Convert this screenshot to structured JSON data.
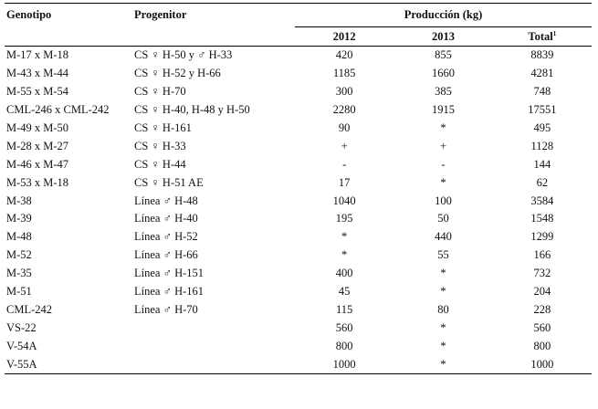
{
  "headers": {
    "genotipo": "Genotipo",
    "progenitor": "Progenitor",
    "produccion": "Producción (kg)",
    "year1": "2012",
    "year2": "2013",
    "total": "Total",
    "total_sup": "1"
  },
  "rows": [
    {
      "genotipo": "M-17 x M-18",
      "progenitor": "CS ♀ H-50 y ♂ H-33",
      "y2012": "420",
      "y2013": "855",
      "total": "8839"
    },
    {
      "genotipo": "M-43 x M-44",
      "progenitor": "CS ♀ H-52 y H-66",
      "y2012": "1185",
      "y2013": "1660",
      "total": "4281"
    },
    {
      "genotipo": "M-55 x M-54",
      "progenitor": "CS ♀ H-70",
      "y2012": "300",
      "y2013": "385",
      "total": "748"
    },
    {
      "genotipo": "CML-246 x CML-242",
      "progenitor": "CS ♀ H-40, H-48 y H-50",
      "y2012": "2280",
      "y2013": "1915",
      "total": "17551"
    },
    {
      "genotipo": "M-49 x M-50",
      "progenitor": "CS ♀ H-161",
      "y2012": "90",
      "y2013": "*",
      "total": "495"
    },
    {
      "genotipo": "M-28 x M-27",
      "progenitor": "CS ♀ H-33",
      "y2012": "+",
      "y2013": "+",
      "total": "1128"
    },
    {
      "genotipo": "M-46 x M-47",
      "progenitor": "CS ♀ H-44",
      "y2012": "-",
      "y2013": "-",
      "total": "144"
    },
    {
      "genotipo": "M-53 x M-18",
      "progenitor": "CS ♀ H-51 AE",
      "y2012": "17",
      "y2013": "*",
      "total": "62"
    },
    {
      "genotipo": "M-38",
      "progenitor": "Línea ♂ H-48",
      "y2012": "1040",
      "y2013": "100",
      "total": "3584"
    },
    {
      "genotipo": "M-39",
      "progenitor": "Línea ♂ H-40",
      "y2012": "195",
      "y2013": "50",
      "total": "1548"
    },
    {
      "genotipo": "M-48",
      "progenitor": "Línea ♂ H-52",
      "y2012": "*",
      "y2013": "440",
      "total": "1299"
    },
    {
      "genotipo": "M-52",
      "progenitor": "Línea ♂ H-66",
      "y2012": "*",
      "y2013": "55",
      "total": "166"
    },
    {
      "genotipo": "M-35",
      "progenitor": "Línea ♂ H-151",
      "y2012": "400",
      "y2013": "*",
      "total": "732"
    },
    {
      "genotipo": "M-51",
      "progenitor": "Línea ♂ H-161",
      "y2012": "45",
      "y2013": "*",
      "total": "204"
    },
    {
      "genotipo": "CML-242",
      "progenitor": "Línea ♂ H-70",
      "y2012": "115",
      "y2013": "80",
      "total": "228"
    },
    {
      "genotipo": "VS-22",
      "progenitor": "",
      "y2012": "560",
      "y2013": "*",
      "total": "560"
    },
    {
      "genotipo": "V-54A",
      "progenitor": "",
      "y2012": "800",
      "y2013": "*",
      "total": "800"
    },
    {
      "genotipo": "V-55A",
      "progenitor": "",
      "y2012": "1000",
      "y2013": "*",
      "total": "1000"
    }
  ]
}
